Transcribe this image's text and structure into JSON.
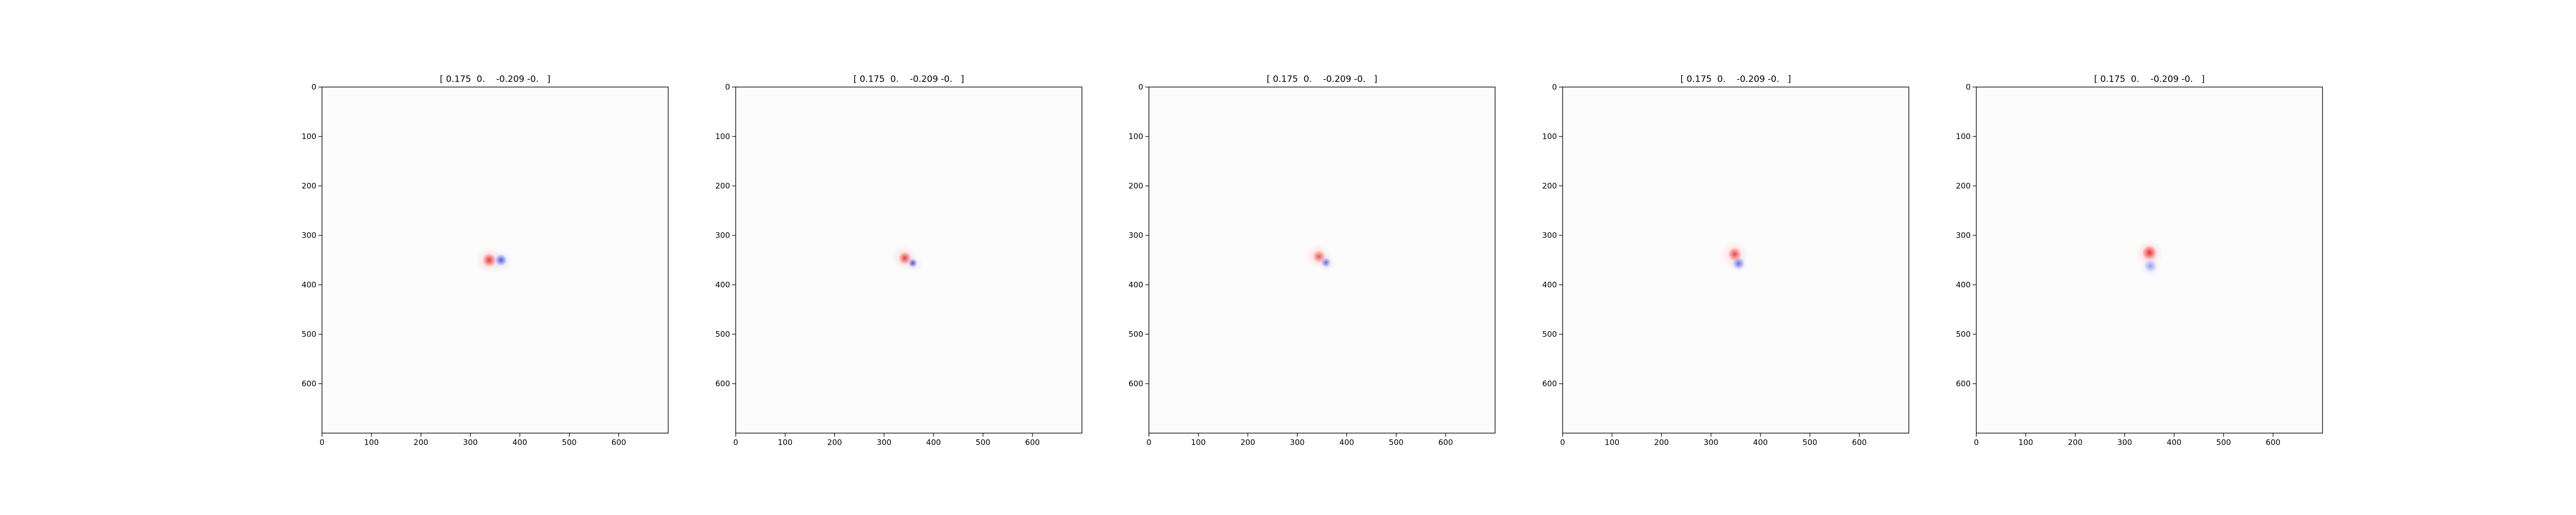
{
  "figure": {
    "panel_count": 5
  },
  "chart_data": [
    {
      "type": "heatmap",
      "title": "[ 0.175  0.    -0.209 -0.   ]",
      "xlabel": "",
      "ylabel": "",
      "xlim": [
        0,
        700
      ],
      "ylim": [
        700,
        0
      ],
      "x_ticks": [
        0,
        100,
        200,
        300,
        400,
        500,
        600
      ],
      "y_ticks": [
        0,
        100,
        200,
        300,
        400,
        500,
        600
      ],
      "colormap": "bwr",
      "colors": {
        "positive": "#ee2222",
        "negative": "#3344ee",
        "neutral": "#ffffff"
      },
      "blobs": [
        {
          "cx": 338,
          "cy": 350,
          "r": 14,
          "sign": 1,
          "strength": 0.9
        },
        {
          "cx": 362,
          "cy": 350,
          "r": 12,
          "sign": -1,
          "strength": 0.85
        },
        {
          "cx": 338,
          "cy": 350,
          "r": 28,
          "sign": 1,
          "strength": 0.15
        },
        {
          "cx": 362,
          "cy": 352,
          "r": 24,
          "sign": -1,
          "strength": 0.12
        }
      ]
    },
    {
      "type": "heatmap",
      "title": "[ 0.175  0.    -0.209 -0.   ]",
      "xlabel": "",
      "ylabel": "",
      "xlim": [
        0,
        700
      ],
      "ylim": [
        700,
        0
      ],
      "x_ticks": [
        0,
        100,
        200,
        300,
        400,
        500,
        600
      ],
      "y_ticks": [
        0,
        100,
        200,
        300,
        400,
        500,
        600
      ],
      "colormap": "bwr",
      "colors": {
        "positive": "#ee2222",
        "negative": "#3344ee",
        "neutral": "#ffffff"
      },
      "blobs": [
        {
          "cx": 342,
          "cy": 346,
          "r": 13,
          "sign": 1,
          "strength": 0.85
        },
        {
          "cx": 358,
          "cy": 356,
          "r": 9,
          "sign": -1,
          "strength": 0.9
        },
        {
          "cx": 340,
          "cy": 345,
          "r": 26,
          "sign": 1,
          "strength": 0.15
        },
        {
          "cx": 360,
          "cy": 358,
          "r": 18,
          "sign": -1,
          "strength": 0.1
        }
      ]
    },
    {
      "type": "heatmap",
      "title": "[ 0.175  0.    -0.209 -0.   ]",
      "xlabel": "",
      "ylabel": "",
      "xlim": [
        0,
        700
      ],
      "ylim": [
        700,
        0
      ],
      "x_ticks": [
        0,
        100,
        200,
        300,
        400,
        500,
        600
      ],
      "y_ticks": [
        0,
        100,
        200,
        300,
        400,
        500,
        600
      ],
      "colormap": "bwr",
      "colors": {
        "positive": "#ee2222",
        "negative": "#3344ee",
        "neutral": "#ffffff"
      },
      "blobs": [
        {
          "cx": 344,
          "cy": 343,
          "r": 13,
          "sign": 1,
          "strength": 0.7
        },
        {
          "cx": 358,
          "cy": 355,
          "r": 10,
          "sign": -1,
          "strength": 0.75
        },
        {
          "cx": 342,
          "cy": 342,
          "r": 26,
          "sign": 1,
          "strength": 0.15
        },
        {
          "cx": 360,
          "cy": 357,
          "r": 18,
          "sign": -1,
          "strength": 0.1
        }
      ]
    },
    {
      "type": "heatmap",
      "title": "[ 0.175  0.    -0.209 -0.   ]",
      "xlabel": "",
      "ylabel": "",
      "xlim": [
        0,
        700
      ],
      "ylim": [
        700,
        0
      ],
      "x_ticks": [
        0,
        100,
        200,
        300,
        400,
        500,
        600
      ],
      "y_ticks": [
        0,
        100,
        200,
        300,
        400,
        500,
        600
      ],
      "colormap": "bwr",
      "colors": {
        "positive": "#ee2222",
        "negative": "#3344ee",
        "neutral": "#ffffff"
      },
      "blobs": [
        {
          "cx": 348,
          "cy": 338,
          "r": 14,
          "sign": 1,
          "strength": 0.8
        },
        {
          "cx": 356,
          "cy": 357,
          "r": 12,
          "sign": -1,
          "strength": 0.7
        },
        {
          "cx": 348,
          "cy": 338,
          "r": 28,
          "sign": 1,
          "strength": 0.15
        },
        {
          "cx": 356,
          "cy": 358,
          "r": 20,
          "sign": -1,
          "strength": 0.12
        }
      ]
    },
    {
      "type": "heatmap",
      "title": "[ 0.175  0.    -0.209 -0.   ]",
      "xlabel": "",
      "ylabel": "",
      "xlim": [
        0,
        700
      ],
      "ylim": [
        700,
        0
      ],
      "x_ticks": [
        0,
        100,
        200,
        300,
        400,
        500,
        600
      ],
      "y_ticks": [
        0,
        100,
        200,
        300,
        400,
        500,
        600
      ],
      "colormap": "bwr",
      "colors": {
        "positive": "#ee2222",
        "negative": "#3344ee",
        "neutral": "#ffffff"
      },
      "blobs": [
        {
          "cx": 350,
          "cy": 335,
          "r": 15,
          "sign": 1,
          "strength": 0.95
        },
        {
          "cx": 352,
          "cy": 362,
          "r": 13,
          "sign": -1,
          "strength": 0.45
        },
        {
          "cx": 350,
          "cy": 336,
          "r": 28,
          "sign": 1,
          "strength": 0.18
        },
        {
          "cx": 352,
          "cy": 364,
          "r": 22,
          "sign": -1,
          "strength": 0.1
        }
      ]
    }
  ]
}
